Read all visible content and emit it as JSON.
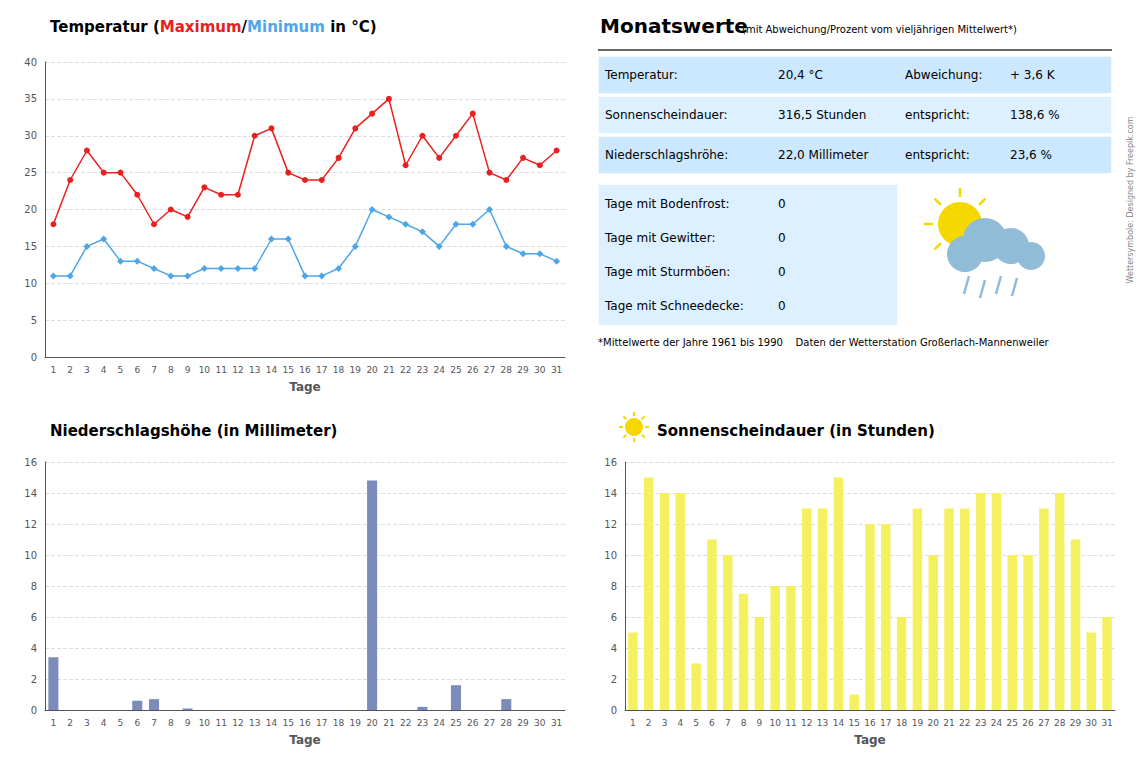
{
  "chart_data": [
    {
      "type": "line",
      "title": "Temperatur (Maximum/Minimum in °C)",
      "xlabel": "Tage",
      "categories": [
        "1",
        "2",
        "3",
        "4",
        "5",
        "6",
        "7",
        "8",
        "9",
        "10",
        "11",
        "12",
        "13",
        "14",
        "15",
        "16",
        "17",
        "18",
        "19",
        "20",
        "21",
        "22",
        "23",
        "24",
        "25",
        "26",
        "27",
        "28",
        "29",
        "30",
        "31"
      ],
      "series": [
        {
          "name": "Maximum",
          "color": "#e82020",
          "marker": "circle",
          "values": [
            18,
            24,
            28,
            25,
            25,
            22,
            18,
            20,
            19,
            23,
            22,
            22,
            30,
            31,
            25,
            24,
            24,
            27,
            31,
            33,
            35,
            26,
            30,
            27,
            30,
            33,
            25,
            24,
            27,
            26,
            28
          ]
        },
        {
          "name": "Minimum",
          "color": "#4da6e8",
          "marker": "diamond",
          "values": [
            11,
            11,
            15,
            16,
            13,
            13,
            12,
            11,
            11,
            12,
            12,
            12,
            12,
            16,
            16,
            11,
            11,
            12,
            15,
            20,
            19,
            18,
            17,
            15,
            18,
            18,
            20,
            15,
            14,
            14,
            13
          ]
        }
      ],
      "ylim": [
        0,
        40
      ],
      "yticks": [
        0,
        5,
        10,
        15,
        20,
        25,
        30,
        35,
        40
      ],
      "grid": true
    },
    {
      "type": "bar",
      "title": "Niederschlagshöhe (in Millimeter)",
      "xlabel": "Tage",
      "categories": [
        "1",
        "2",
        "3",
        "4",
        "5",
        "6",
        "7",
        "8",
        "9",
        "10",
        "11",
        "12",
        "13",
        "14",
        "15",
        "16",
        "17",
        "18",
        "19",
        "20",
        "21",
        "22",
        "23",
        "24",
        "25",
        "26",
        "27",
        "28",
        "29",
        "30",
        "31"
      ],
      "values": [
        3.4,
        0,
        0,
        0,
        0,
        0.6,
        0.7,
        0,
        0.1,
        0,
        0,
        0,
        0,
        0,
        0,
        0,
        0,
        0,
        0,
        14.8,
        0,
        0,
        0.2,
        0,
        1.6,
        0,
        0,
        0.7,
        0,
        0,
        0
      ],
      "color": "#7b8cba",
      "ylim": [
        0,
        16
      ],
      "yticks": [
        0,
        2,
        4,
        6,
        8,
        10,
        12,
        14,
        16
      ],
      "grid": true
    },
    {
      "type": "bar",
      "title": "Sonnenscheindauer (in Stunden)",
      "xlabel": "Tage",
      "categories": [
        "1",
        "2",
        "3",
        "4",
        "5",
        "6",
        "7",
        "8",
        "9",
        "10",
        "11",
        "12",
        "13",
        "14",
        "15",
        "16",
        "17",
        "18",
        "19",
        "20",
        "21",
        "22",
        "23",
        "24",
        "25",
        "26",
        "27",
        "28",
        "29",
        "30",
        "31"
      ],
      "values": [
        5,
        15,
        14,
        14,
        3,
        11,
        10,
        7.5,
        6,
        8,
        8,
        13,
        13,
        15,
        1,
        12,
        12,
        6,
        13,
        10,
        13,
        13,
        14,
        14,
        10,
        10,
        13,
        14,
        11,
        5,
        6
      ],
      "color": "#f5f060",
      "ylim": [
        0,
        16
      ],
      "yticks": [
        0,
        2,
        4,
        6,
        8,
        10,
        12,
        14,
        16
      ],
      "grid": true
    },
    {
      "type": "table",
      "title": "Monatswerte",
      "subtitle": "(mit Abweichung/Prozent vom vieljährigen Mittelwert*)",
      "rows": [
        [
          "Temperatur:",
          "20,4 °C",
          "Abweichung:",
          "+ 3,6 K"
        ],
        [
          "Sonnenscheindauer:",
          "316,5 Stunden",
          "entspricht:",
          "138,6 %"
        ],
        [
          "Niederschlagshröhe:",
          "22,0 Millimeter",
          "entspricht:",
          "23,6 %"
        ]
      ],
      "colors": [
        "#cce8ff",
        "#ddf0ff",
        "#cce8ff"
      ],
      "extra_rows": [
        [
          "Tage mit Bodenfrost:",
          "0"
        ],
        [
          "Tage mit Gewitter:",
          "0"
        ],
        [
          "Tage mit Sturmböen:",
          "0"
        ],
        [
          "Tage mit Schneedecke:",
          "0"
        ]
      ],
      "color": "#ddf0ff",
      "annotations": [
        "*Mittelwerte der Jahre 1961 bis 1990    Daten der Wetterstation Großerlach-Mannenweiler",
        "Wettersymbole: Designed by Freepik.com"
      ]
    }
  ]
}
